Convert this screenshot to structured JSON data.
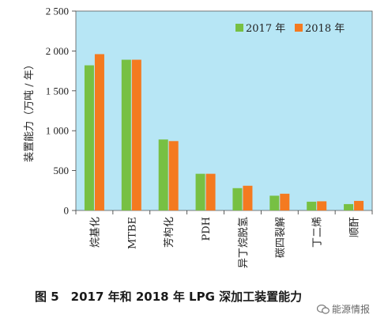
{
  "chart_data": {
    "type": "bar",
    "ylabel": "装置能力（万吨 / 年）",
    "ylim": [
      0,
      2500
    ],
    "yticks": [
      "0",
      "500",
      "1 000",
      "1 500",
      "2 000",
      "2 500"
    ],
    "ytick_values": [
      0,
      500,
      1000,
      1500,
      2000,
      2500
    ],
    "categories": [
      "烷基化",
      "MTBE",
      "芳构化",
      "PDH",
      "异丁烷脱氢",
      "碳四裂解",
      "丁二烯",
      "顺酐"
    ],
    "series": [
      {
        "name": "2017 年",
        "color": "#77c043",
        "values": [
          1820,
          1890,
          890,
          460,
          280,
          185,
          110,
          80
        ]
      },
      {
        "name": "2018 年",
        "color": "#f47a20",
        "values": [
          1960,
          1890,
          870,
          460,
          310,
          210,
          115,
          120
        ]
      }
    ],
    "plot_background": "#b7e6f5",
    "legend_position": "top-right"
  },
  "caption": "图 5　2017 年和 2018 年 LPG 深加工装置能力",
  "watermark": "能源情报"
}
